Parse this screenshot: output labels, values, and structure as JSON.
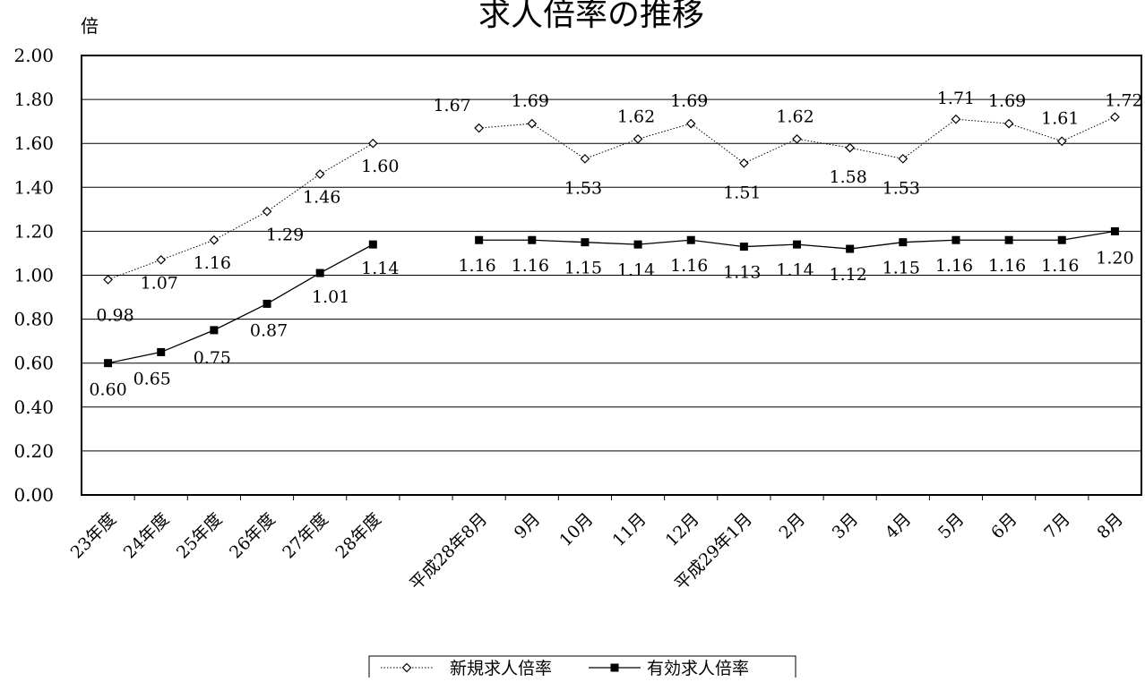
{
  "chart_data": {
    "type": "line",
    "title": "求人倍率の推移",
    "y_unit": "倍",
    "ylim": [
      0,
      2
    ],
    "y_ticks": [
      "0.00",
      "0.20",
      "0.40",
      "0.60",
      "0.80",
      "1.00",
      "1.20",
      "1.40",
      "1.60",
      "1.80",
      "2.00"
    ],
    "grid": true,
    "legend_position": "bottom",
    "categories": [
      "23年度",
      "24年度",
      "25年度",
      "26年度",
      "27年度",
      "28年度",
      "",
      "平成28年8月",
      "9月",
      "10月",
      "11月",
      "12月",
      "平成29年1月",
      "2月",
      "3月",
      "4月",
      "5月",
      "6月",
      "7月",
      "8月"
    ],
    "series": [
      {
        "name": "新規求人倍率",
        "color": "#000000",
        "marker": "diamond-open",
        "line_style": "dotted",
        "values": [
          0.98,
          1.07,
          1.16,
          1.29,
          1.46,
          1.6,
          null,
          1.67,
          1.69,
          1.53,
          1.62,
          1.69,
          1.51,
          1.62,
          1.58,
          1.53,
          1.71,
          1.69,
          1.61,
          1.72
        ]
      },
      {
        "name": "有効求人倍率",
        "color": "#000000",
        "marker": "square-filled",
        "line_style": "solid",
        "values": [
          0.6,
          0.65,
          0.75,
          0.87,
          1.01,
          1.14,
          null,
          1.16,
          1.16,
          1.15,
          1.14,
          1.16,
          1.13,
          1.14,
          1.12,
          1.15,
          1.16,
          1.16,
          1.16,
          1.2
        ]
      }
    ]
  }
}
